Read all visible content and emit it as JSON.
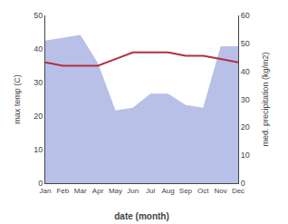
{
  "chart_data": {
    "type": "line",
    "xlabel": "date (month)",
    "ylabel": "max temp (C)",
    "y2label": "med. precipitation (kg/m2)",
    "categories": [
      "Jan",
      "Feb",
      "Mar",
      "Apr",
      "May",
      "Jun",
      "Jul",
      "Aug",
      "Sep",
      "Oct",
      "Nov",
      "Dec"
    ],
    "series": [
      {
        "type": "area",
        "color": "#b8c0e8",
        "axis": "y2",
        "values": [
          51,
          52,
          53,
          43,
          26,
          27,
          32,
          32,
          28,
          27,
          49,
          49
        ]
      },
      {
        "type": "line",
        "color": "#b03040",
        "values": [
          36,
          35,
          35,
          35,
          37,
          39,
          39,
          39,
          38,
          38,
          37,
          36
        ]
      }
    ],
    "ylim": [
      0,
      50
    ],
    "yticks": [
      0,
      10,
      20,
      30,
      40,
      50
    ],
    "y2lim": [
      0,
      60
    ],
    "y2ticks": [
      0,
      10,
      20,
      30,
      40,
      50,
      60
    ],
    "grid": false
  }
}
